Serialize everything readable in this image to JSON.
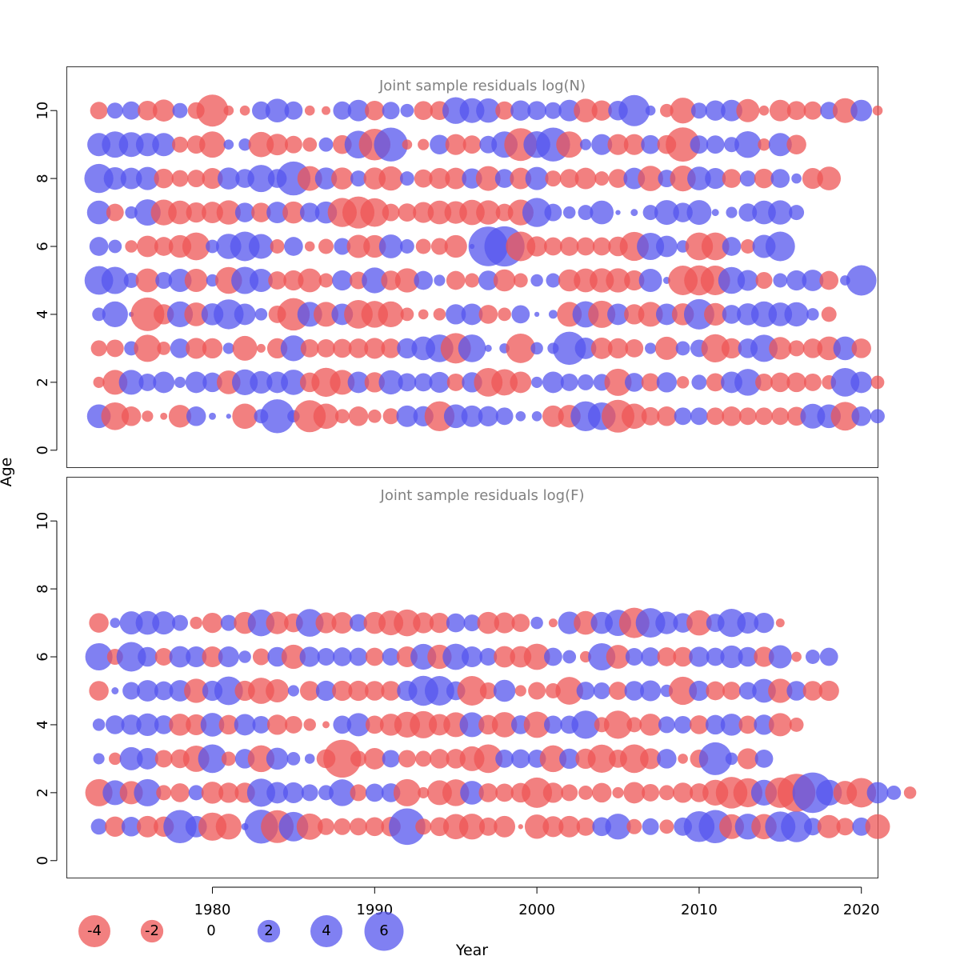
{
  "chart_data": {
    "type": "scatter",
    "subtype": "bubble",
    "xlabel": "Year",
    "ylabel": "Age",
    "x_ticks": [
      1980,
      1990,
      2000,
      2010,
      2020
    ],
    "y_ticks": [
      0,
      2,
      4,
      6,
      8,
      10
    ],
    "xlim": [
      1971,
      2021
    ],
    "ylim": [
      -0.5,
      11.3
    ],
    "colors": {
      "positive": "#5555ee",
      "negative": "#ee5555"
    },
    "legend": {
      "placement": "bottom-left",
      "items": [
        {
          "label": "-4",
          "value": -4
        },
        {
          "label": "-2",
          "value": -2
        },
        {
          "label": "0",
          "value": 0
        },
        {
          "label": "2",
          "value": 2
        },
        {
          "label": "4",
          "value": 4
        },
        {
          "label": "6",
          "value": 6
        }
      ]
    },
    "panels": [
      {
        "title": "Joint sample residuals log(N)",
        "first_year": 1973,
        "ages": [
          1,
          2,
          3,
          4,
          5,
          6,
          7,
          8,
          9,
          10
        ],
        "residuals": {
          "1": [
            2.2,
            -3,
            -1.5,
            -0.5,
            -0.2,
            -2,
            1.5,
            0.2,
            0.1,
            -2.5,
            0.8,
            4.5,
            0.6,
            -4,
            -2.5,
            -0.8,
            -1.5,
            -0.7,
            -1,
            1.8,
            1.6,
            -3.5,
            2.2,
            1.8,
            1.6,
            1.2,
            0.4,
            0.4,
            -1.8,
            -2,
            3.5,
            3,
            -4.2,
            -2.5,
            -1.3,
            -1.5,
            1.2,
            1.2,
            -1.2,
            -1.5,
            -1.2,
            -1.2,
            -1.2,
            -1.4,
            2.4,
            2.2,
            -3.2,
            1.5,
            0.8
          ],
          "2": [
            -0.5,
            -2.4,
            2.4,
            1.2,
            1.8,
            0.5,
            1.8,
            1.5,
            -2.2,
            2.6,
            2,
            1.8,
            2.5,
            -1.5,
            -3.3,
            -2.4,
            1.8,
            -1.6,
            2.3,
            1.3,
            1.3,
            1.7,
            -1.2,
            1.6,
            -3.2,
            -2.7,
            -1.8,
            0.5,
            1.8,
            1.2,
            1,
            1.1,
            -2.9,
            1.4,
            -1.3,
            1.6,
            -0.6,
            0.9,
            -1.3,
            1.8,
            2.8,
            -1.2,
            -1.5,
            -1.5,
            -1.2,
            -0.8,
            3.2,
            1.8,
            -0.7
          ],
          "3": [
            -1,
            -1.2,
            0.8,
            -2.9,
            -0.7,
            1.5,
            -1.7,
            -1.6,
            0.5,
            -2.4,
            -0.3,
            -1.6,
            2.6,
            -1.3,
            -1.3,
            -1.4,
            -1.5,
            -1.7,
            -1.5,
            1.6,
            2.2,
            3,
            -3.6,
            3,
            0.2,
            0.4,
            -3.4,
            0.6,
            0.5,
            4.3,
            1.8,
            -1.8,
            -1.6,
            -1.3,
            0.5,
            -2.1,
            0.8,
            1.2,
            -3.1,
            -1.6,
            1.5,
            2.9,
            -2,
            -1,
            -1.5,
            -2.2,
            2.2,
            -1.5
          ],
          "4": [
            0.7,
            2.6,
            0.1,
            -4.4,
            -1.6,
            2.6,
            -2.2,
            1.9,
            3.5,
            1.8,
            0.6,
            -1.2,
            -4.1,
            2.4,
            -2.4,
            1.8,
            -3.2,
            -2.8,
            -2.6,
            -0.7,
            -0.4,
            -0.6,
            1.6,
            1.8,
            -1.4,
            -0.7,
            1.3,
            0.1,
            0.3,
            -2.4,
            2.7,
            -2.9,
            1.8,
            -1.6,
            -2.4,
            1.8,
            -1.9,
            3.6,
            -2,
            1.4,
            1.9,
            2.6,
            2.2,
            2.3,
            0.6,
            -0.9
          ],
          "5": [
            3.2,
            2.9,
            0.9,
            -2.2,
            1.1,
            2.1,
            -2.1,
            0.6,
            -2.8,
            2.9,
            2.1,
            -1.3,
            -1.6,
            -2.2,
            -0.8,
            1.6,
            -1.2,
            2.6,
            -1.5,
            -2.3,
            1.4,
            0.5,
            -1.4,
            -0.8,
            1.5,
            -1.9,
            -0.8,
            0.6,
            0.8,
            -1.9,
            -2.2,
            -2.3,
            -2.3,
            -1.6,
            2.1,
            0.2,
            -3.4,
            -3.5,
            -3.4,
            2.8,
            1.7,
            -1.1,
            0.8,
            1.6,
            1.8,
            -1.4,
            0.4,
            3.6
          ],
          "6": [
            1.4,
            0.7,
            -0.6,
            -1.8,
            -1.4,
            -2,
            -3,
            0.7,
            2.5,
            3.4,
            2.4,
            -0.8,
            1.4,
            -0.4,
            -0.9,
            1.1,
            -2.1,
            -2,
            2.2,
            0.8,
            -0.9,
            -1.1,
            -2,
            0.1,
            6.1,
            6.3,
            -3.4,
            -1.6,
            -1.3,
            -1.4,
            -1.3,
            -1.3,
            -1.5,
            -3.3,
            2.9,
            1.8,
            0.6,
            -3,
            -3,
            1.4,
            -0.8,
            2.1,
            3.4
          ],
          "7": [
            2.2,
            -1.2,
            0.6,
            2.7,
            -2.6,
            -2.2,
            -1.6,
            -1.8,
            -2.3,
            1.5,
            -1.5,
            1.8,
            -1.9,
            1.5,
            1.9,
            -3.3,
            -4,
            -3.2,
            -1.2,
            -1.3,
            -1.7,
            -2.2,
            -2,
            -2.5,
            -2.3,
            -1.2,
            -2.6,
            3.3,
            1.2,
            0.6,
            0.9,
            2.2,
            0.1,
            0.2,
            0.9,
            2.4,
            1.5,
            2.4,
            0.2,
            0.5,
            1.3,
            2.2,
            2.3,
            0.9
          ],
          "8": [
            3.3,
            2,
            1.8,
            2.1,
            -1.5,
            -1.1,
            -1.2,
            -1.7,
            1.9,
            1.4,
            2.9,
            1.4,
            4.5,
            -2.4,
            1.9,
            -1.9,
            1,
            -1.9,
            -2.3,
            0.8,
            -1.3,
            -1.7,
            -1.8,
            1.6,
            -2.4,
            1.4,
            -1.8,
            2.1,
            -1,
            -1.4,
            -1.8,
            -0.8,
            -1.4,
            1.8,
            -2.5,
            1.2,
            -2.6,
            2.2,
            1.7,
            -1.4,
            1,
            -1.5,
            1.4,
            0.4,
            -1.7,
            -2.2
          ],
          "9": [
            2.1,
            2.7,
            2.4,
            2.1,
            2.1,
            -1,
            -1.3,
            -2.7,
            0.4,
            0.6,
            -2.5,
            -1.8,
            -1.2,
            -0.8,
            0.8,
            -1.4,
            3,
            -3.9,
            4.5,
            -0.4,
            -0.5,
            1.5,
            -1.7,
            -1.3,
            1.2,
            2.7,
            -4.2,
            2.8,
            4.5,
            -2.7,
            0.5,
            1.7,
            -1.7,
            -1.7,
            1.4,
            -1.4,
            -4.6,
            1.3,
            1.3,
            0.9,
            2.8,
            -0.6,
            2.1,
            -1.5
          ],
          "10": [
            -1.2,
            1,
            1.3,
            -1.5,
            -1.9,
            0.9,
            -1.1,
            -4,
            -0.4,
            -0.4,
            1.3,
            2.2,
            1.3,
            -0.4,
            -0.3,
            1.3,
            1.8,
            -1.5,
            1.2,
            0.7,
            -1.4,
            -1.4,
            2.8,
            2.4,
            2.3,
            -1.3,
            1.6,
            1.4,
            1.1,
            1.8,
            -2.2,
            -1.6,
            1.5,
            3.8,
            0.4,
            -0.7,
            -2.6,
            1,
            1.6,
            1.8,
            -2.1,
            -0.4,
            -1.8,
            -1.4,
            -1.3,
            1.2,
            -2.4,
            1.8,
            -0.4
          ]
        }
      },
      {
        "title": "Joint sample residuals log(F)",
        "first_year": 1973,
        "ages": [
          1,
          2,
          3,
          4,
          5,
          6,
          7
        ],
        "residuals": {
          "1": [
            1,
            -1.6,
            1.5,
            -1.8,
            -1.6,
            4.3,
            1.8,
            -3.1,
            -2.6,
            0.2,
            4.5,
            -4.2,
            3.4,
            -2.7,
            -1.1,
            -1.1,
            -1.2,
            -1.4,
            -1.5,
            5.2,
            -1,
            -1.4,
            -2.5,
            -2.6,
            -1.3,
            -1.8,
            -0.1,
            -2.3,
            -1.7,
            -1.8,
            -1.3,
            1.4,
            2.6,
            -0.9,
            1.1,
            -0.8,
            1.3,
            3.7,
            4.3,
            -2.4,
            2.6,
            -2.5,
            3.6,
            3.8,
            1.2,
            -2.1,
            -1.2,
            1.3,
            -2.4
          ],
          "2": [
            -2.9,
            2.4,
            -2.1,
            2.9,
            -0.9,
            -1.4,
            0.9,
            -1.9,
            -1.6,
            -1.6,
            3.1,
            1.8,
            1.7,
            1.1,
            0.9,
            2.8,
            -1.1,
            1.3,
            1.4,
            -2.9,
            -0.5,
            -2.4,
            -2.8,
            2.2,
            -1.4,
            -1.3,
            -1.5,
            -3.6,
            -1.6,
            -1.1,
            -0.8,
            -1.5,
            -0.5,
            -1.8,
            -1.2,
            -0.9,
            -1.6,
            -1.4,
            -2.6,
            -3.9,
            -3.3,
            2.6,
            -3.6,
            -5.6,
            6.4,
            2.6,
            -2.2,
            -3.4,
            1.8,
            0.8,
            -0.6
          ],
          "3": [
            0.5,
            -0.6,
            2.1,
            1.8,
            -1.2,
            -1.4,
            -2.7,
            3.2,
            -0.8,
            1.5,
            -2.8,
            1.9,
            0.7,
            0.4,
            -1.4,
            -5.6,
            -1,
            -1.8,
            1.2,
            -1.2,
            -1,
            -1.5,
            -1.5,
            -2.4,
            -3.2,
            1.3,
            1.4,
            1.3,
            -2.8,
            1.6,
            -1.6,
            -3.1,
            -1.3,
            -3.2,
            -1.7,
            1.5,
            -0.4,
            -1.3,
            4.2,
            0.6,
            -1.7,
            1.3
          ],
          "4": [
            0.6,
            1.4,
            1.6,
            2,
            1.4,
            -1.9,
            -1.7,
            2.2,
            -1.5,
            1.8,
            1.2,
            -1.6,
            -1.2,
            -0.6,
            -0.2,
            1.3,
            2.1,
            -1.3,
            -1.9,
            -2.6,
            -2.9,
            -1.8,
            -2.4,
            2.4,
            -1.5,
            -2.5,
            1.4,
            -2.7,
            1.3,
            1.3,
            3.1,
            -0.9,
            -3.1,
            -0.9,
            -1.9,
            1.1,
            1.2,
            -1.4,
            1.5,
            1.9,
            -1.3,
            1.6,
            -2.1,
            -0.8
          ],
          "5": [
            -1.5,
            0.2,
            1.2,
            1.8,
            1.4,
            1.8,
            -2.3,
            1.6,
            3.2,
            -1.6,
            -2.7,
            -2.1,
            0.5,
            -1.5,
            1.6,
            -1.6,
            -1.6,
            -1.5,
            -1.5,
            1.6,
            3.5,
            3.4,
            1.4,
            -3.4,
            -1.1,
            1.9,
            -0.5,
            -1.2,
            -0.9,
            -3,
            1.3,
            1.1,
            -1.3,
            1.5,
            1.7,
            0.6,
            -3.1,
            1.6,
            -1.4,
            -1.3,
            1.2,
            2.2,
            -2.3,
            1.5,
            -1.5,
            -1.6
          ],
          "6": [
            2.9,
            -1,
            3.4,
            1.5,
            -1.2,
            1.8,
            1.7,
            -1.7,
            1.7,
            0.6,
            -1.1,
            1.5,
            -2.3,
            1.6,
            1.2,
            1.4,
            1.3,
            -1.3,
            1.2,
            -1.7,
            2.6,
            -2.3,
            2.7,
            1.7,
            1.2,
            -1.8,
            -1.8,
            -2.7,
            1.3,
            0.7,
            -0.5,
            2.9,
            -2.2,
            1.2,
            1.4,
            -1.4,
            -1.5,
            1.6,
            1.3,
            2,
            1.5,
            -1.6,
            2.1,
            -0.4,
            0.8,
            1.3
          ],
          "7": [
            -1.5,
            0.4,
            2.1,
            2.2,
            2.1,
            1,
            -0.6,
            -1.6,
            1,
            -1.9,
            2.8,
            -2,
            -1.4,
            3,
            -1.7,
            -1.8,
            1.2,
            -1.9,
            -2.4,
            -2.8,
            -1.7,
            -1.6,
            1.4,
            1.1,
            -1.9,
            -1.7,
            -1.3,
            0.6,
            -0.3,
            2,
            -2.2,
            1.9,
            2.7,
            -3.6,
            3.4,
            2,
            1.5,
            -2.5,
            1.3,
            3.1,
            1.8,
            1.6,
            -0.3
          ]
        }
      }
    ]
  }
}
